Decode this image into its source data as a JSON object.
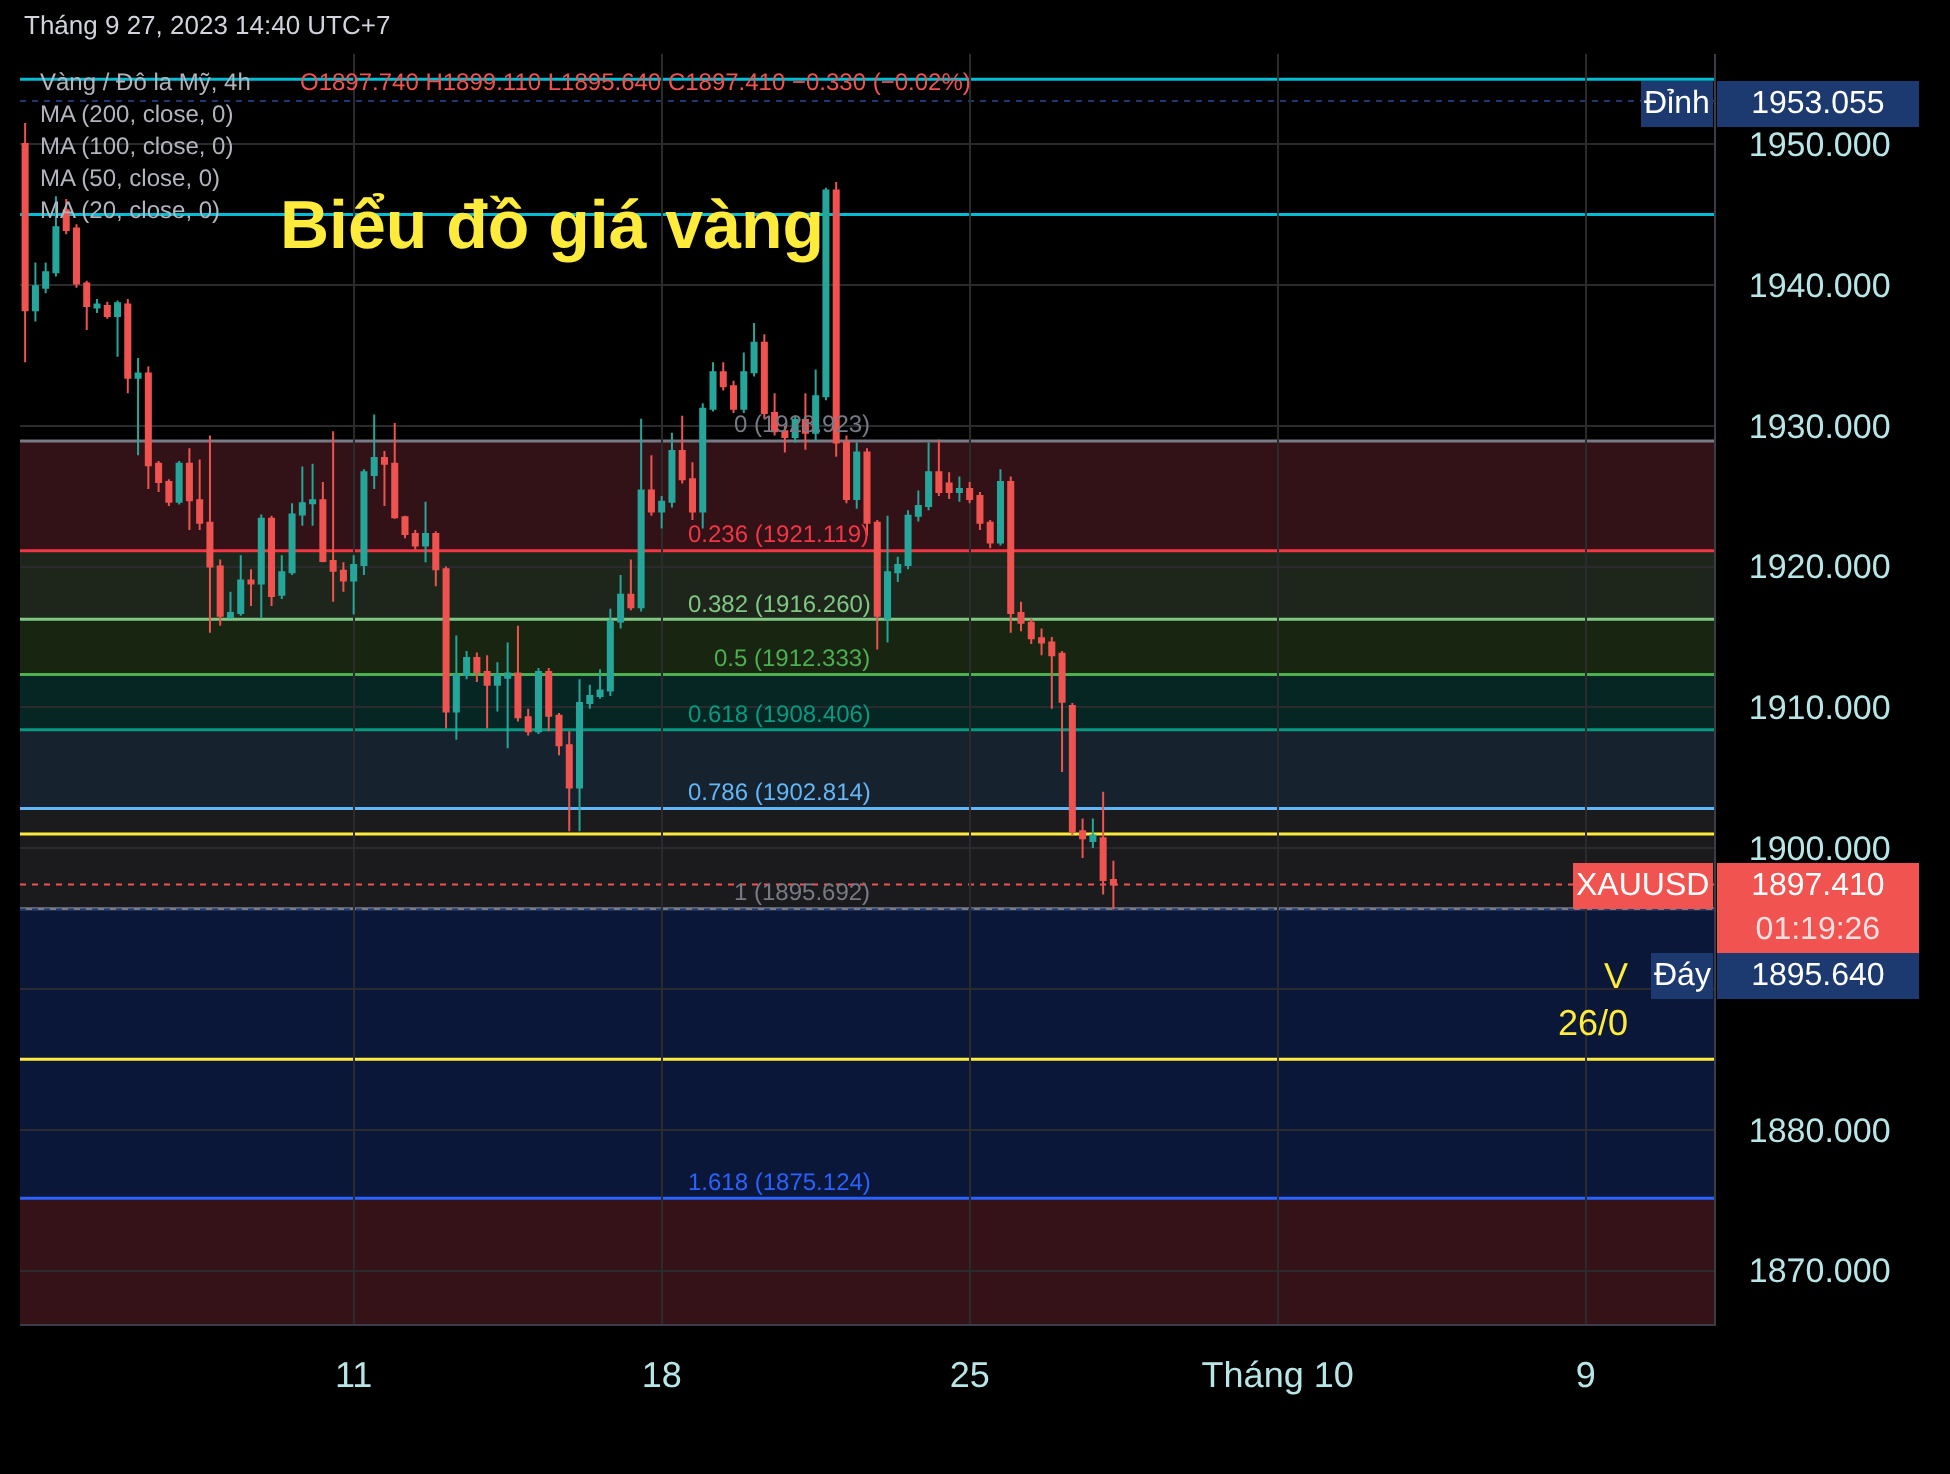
{
  "chart_data": {
    "type": "candlestick",
    "title": "Biểu đồ giá vàng",
    "categories": [
      null,
      null,
      null,
      null,
      null,
      null,
      null,
      null,
      null,
      null,
      null,
      null,
      null,
      null,
      null,
      null,
      null,
      null,
      null,
      null,
      null,
      null,
      null,
      null,
      null,
      null,
      null,
      null,
      null,
      null,
      null,
      null,
      "11",
      null,
      null,
      null,
      null,
      null,
      null,
      null,
      null,
      null,
      null,
      null,
      null,
      null,
      null,
      null,
      null,
      null,
      null,
      null,
      null,
      null,
      null,
      null,
      null,
      null,
      null,
      null,
      null,
      null,
      "18",
      null,
      null,
      null,
      null,
      null,
      null,
      null,
      null,
      null,
      null,
      null,
      null,
      null,
      null,
      null,
      null,
      null,
      null,
      null,
      null,
      null,
      null,
      null,
      null,
      null,
      null,
      null,
      null,
      null,
      "25",
      null,
      null,
      null,
      null,
      null,
      null,
      null,
      null,
      null,
      null,
      null,
      null,
      null,
      null,
      null,
      null,
      null,
      null,
      null,
      null,
      null,
      null,
      null,
      null,
      null,
      null,
      null,
      null,
      null,
      "Tháng 10",
      null,
      null,
      null,
      null,
      null,
      null,
      null,
      null,
      null,
      null,
      null,
      null,
      null,
      null,
      null,
      null,
      null,
      null,
      null,
      null,
      null,
      null,
      null,
      null,
      null,
      null,
      null,
      null,
      null,
      "9",
      null,
      null,
      null,
      null,
      null,
      null,
      null,
      null,
      null,
      null,
      null,
      null
    ],
    "ohlc": [
      [
        1950.0,
        1951.5,
        1934.5,
        1938.2
      ],
      [
        1938.2,
        1941.6,
        1937.4,
        1939.9
      ],
      [
        1939.8,
        1941.6,
        1939.4,
        1940.9
      ],
      [
        1940.9,
        1946.3,
        1940.6,
        1944.1
      ],
      [
        1945.3,
        1946.1,
        1943.6,
        1943.9
      ],
      [
        1944.0,
        1944.3,
        1939.8,
        1940.1
      ],
      [
        1940.1,
        1940.3,
        1936.8,
        1938.5
      ],
      [
        1938.4,
        1939.0,
        1938.0,
        1938.6
      ],
      [
        1938.5,
        1938.8,
        1937.6,
        1937.8
      ],
      [
        1937.8,
        1938.9,
        1934.9,
        1938.7
      ],
      [
        1938.6,
        1939.0,
        1932.3,
        1933.4
      ],
      [
        1933.4,
        1934.8,
        1927.9,
        1933.7
      ],
      [
        1933.7,
        1934.2,
        1925.5,
        1927.2
      ],
      [
        1927.3,
        1927.5,
        1925.3,
        1926.0
      ],
      [
        1926.0,
        1926.2,
        1924.3,
        1924.6
      ],
      [
        1924.6,
        1927.5,
        1924.4,
        1927.3
      ],
      [
        1927.3,
        1928.4,
        1922.6,
        1924.7
      ],
      [
        1924.7,
        1927.6,
        1922.6,
        1923.1
      ],
      [
        1923.1,
        1929.3,
        1915.3,
        1920.0
      ],
      [
        1920.0,
        1920.5,
        1915.8,
        1916.5
      ],
      [
        1916.4,
        1918.2,
        1916.3,
        1916.7
      ],
      [
        1916.7,
        1920.8,
        1916.5,
        1919.0
      ],
      [
        1919.0,
        1919.8,
        1917.2,
        1918.8
      ],
      [
        1918.8,
        1923.7,
        1916.3,
        1923.4
      ],
      [
        1923.4,
        1923.6,
        1917.2,
        1917.9
      ],
      [
        1918.0,
        1920.8,
        1917.7,
        1919.6
      ],
      [
        1919.6,
        1924.5,
        1919.4,
        1923.7
      ],
      [
        1923.7,
        1927.1,
        1922.9,
        1924.5
      ],
      [
        1924.5,
        1927.3,
        1922.9,
        1924.7
      ],
      [
        1924.7,
        1926.0,
        1920.3,
        1920.4
      ],
      [
        1920.4,
        1929.6,
        1917.5,
        1919.7
      ],
      [
        1919.7,
        1920.3,
        1918.2,
        1919.0
      ],
      [
        1919.0,
        1920.8,
        1916.6,
        1920.1
      ],
      [
        1920.1,
        1926.9,
        1919.4,
        1926.7
      ],
      [
        1926.5,
        1930.8,
        1925.5,
        1927.7
      ],
      [
        1927.7,
        1928.2,
        1924.3,
        1927.3
      ],
      [
        1927.3,
        1930.2,
        1923.4,
        1923.5
      ],
      [
        1923.5,
        1923.6,
        1922.0,
        1922.3
      ],
      [
        1922.3,
        1922.6,
        1921.2,
        1921.5
      ],
      [
        1921.5,
        1924.6,
        1920.3,
        1922.3
      ],
      [
        1922.3,
        1922.5,
        1918.6,
        1919.8
      ],
      [
        1919.8,
        1920.0,
        1908.5,
        1909.7
      ],
      [
        1909.7,
        1915.1,
        1907.7,
        1912.3
      ],
      [
        1912.3,
        1914.0,
        1912.0,
        1913.5
      ],
      [
        1913.5,
        1913.9,
        1911.8,
        1912.5
      ],
      [
        1912.5,
        1913.7,
        1908.5,
        1911.6
      ],
      [
        1911.6,
        1913.2,
        1909.7,
        1912.3
      ],
      [
        1912.1,
        1914.6,
        1907.1,
        1912.4
      ],
      [
        1912.4,
        1915.8,
        1909.0,
        1909.3
      ],
      [
        1909.3,
        1909.9,
        1908.0,
        1908.3
      ],
      [
        1908.3,
        1912.8,
        1908.1,
        1912.5
      ],
      [
        1912.5,
        1912.8,
        1908.3,
        1909.4
      ],
      [
        1909.4,
        1909.6,
        1906.6,
        1907.3
      ],
      [
        1907.3,
        1908.3,
        1901.2,
        1904.3
      ],
      [
        1904.3,
        1912.0,
        1901.2,
        1910.3
      ],
      [
        1910.3,
        1911.6,
        1909.9,
        1910.8
      ],
      [
        1910.8,
        1912.7,
        1910.6,
        1911.2
      ],
      [
        1911.2,
        1917.0,
        1910.8,
        1916.1
      ],
      [
        1916.1,
        1919.4,
        1915.6,
        1918.0
      ],
      [
        1918.0,
        1920.5,
        1916.9,
        1917.1
      ],
      [
        1917.1,
        1930.5,
        1916.8,
        1925.4
      ],
      [
        1925.4,
        1927.9,
        1923.6,
        1923.9
      ],
      [
        1923.9,
        1925.0,
        1922.7,
        1924.6
      ],
      [
        1924.6,
        1929.5,
        1924.2,
        1928.2
      ],
      [
        1928.2,
        1930.7,
        1925.9,
        1926.2
      ],
      [
        1926.2,
        1927.4,
        1923.3,
        1923.9
      ],
      [
        1923.9,
        1931.6,
        1922.7,
        1931.2
      ],
      [
        1931.2,
        1934.5,
        1931.0,
        1933.8
      ],
      [
        1933.8,
        1934.5,
        1932.5,
        1932.8
      ],
      [
        1932.8,
        1933.2,
        1930.9,
        1931.2
      ],
      [
        1931.2,
        1935.2,
        1930.9,
        1933.8
      ],
      [
        1933.8,
        1937.3,
        1933.5,
        1935.9
      ],
      [
        1935.9,
        1936.5,
        1930.5,
        1930.9
      ],
      [
        1930.9,
        1932.3,
        1929.3,
        1929.6
      ],
      [
        1929.6,
        1930.0,
        1928.1,
        1929.2
      ],
      [
        1929.2,
        1930.7,
        1928.8,
        1930.4
      ],
      [
        1930.4,
        1932.3,
        1928.3,
        1929.5
      ],
      [
        1929.5,
        1934.0,
        1928.9,
        1932.1
      ],
      [
        1932.1,
        1946.9,
        1931.8,
        1946.7
      ],
      [
        1946.7,
        1947.3,
        1927.8,
        1928.8
      ],
      [
        1928.8,
        1929.3,
        1924.5,
        1924.8
      ],
      [
        1924.8,
        1928.8,
        1924.1,
        1928.1
      ],
      [
        1928.1,
        1928.4,
        1922.2,
        1923.1
      ],
      [
        1923.1,
        1923.3,
        1914.1,
        1916.5
      ],
      [
        1916.3,
        1923.6,
        1914.6,
        1919.6
      ],
      [
        1919.6,
        1920.7,
        1918.9,
        1920.1
      ],
      [
        1920.1,
        1924.0,
        1919.8,
        1923.6
      ],
      [
        1923.6,
        1925.4,
        1923.2,
        1924.3
      ],
      [
        1924.3,
        1928.8,
        1924.0,
        1926.7
      ],
      [
        1926.7,
        1929.0,
        1925.0,
        1925.3
      ],
      [
        1925.9,
        1926.7,
        1924.8,
        1925.3
      ],
      [
        1925.3,
        1926.4,
        1924.6,
        1925.5
      ],
      [
        1925.5,
        1926.0,
        1924.5,
        1924.8
      ],
      [
        1925.0,
        1925.3,
        1922.6,
        1923.1
      ],
      [
        1923.1,
        1923.3,
        1921.3,
        1921.7
      ],
      [
        1921.7,
        1926.9,
        1921.5,
        1926.0
      ],
      [
        1926.0,
        1926.4,
        1915.3,
        1916.7
      ],
      [
        1916.7,
        1917.5,
        1915.4,
        1916.0
      ],
      [
        1916.0,
        1916.3,
        1914.5,
        1914.9
      ],
      [
        1914.9,
        1915.6,
        1913.7,
        1914.6
      ],
      [
        1914.6,
        1915.0,
        1909.9,
        1913.7
      ],
      [
        1913.8,
        1914.0,
        1905.4,
        1910.4
      ],
      [
        1910.1,
        1910.3,
        1900.9,
        1901.2
      ],
      [
        1901.2,
        1902.1,
        1899.3,
        1900.7
      ],
      [
        1900.5,
        1902.1,
        1900.0,
        1900.9
      ],
      [
        1900.7,
        1904.0,
        1896.7,
        1897.74
      ],
      [
        1897.74,
        1899.11,
        1895.64,
        1897.41
      ],
      null,
      null,
      null,
      null,
      null,
      null,
      null,
      null,
      null,
      null,
      null,
      null,
      null,
      null,
      null,
      null,
      null,
      null,
      null,
      null,
      null,
      null,
      null,
      null,
      null,
      null,
      null,
      null,
      null,
      null,
      null,
      null,
      null,
      null,
      null,
      null,
      null,
      null,
      null,
      null,
      null,
      null,
      null,
      null,
      null,
      null,
      null,
      null,
      null,
      null,
      null,
      null,
      null,
      null,
      null,
      null,
      null,
      null
    ],
    "colors": [
      "#ef5350",
      "#26a69a",
      "#26a69a",
      "#26a69a",
      "#ef5350",
      "#ef5350",
      "#ef5350",
      "#26a69a",
      "#ef5350",
      "#26a69a",
      "#ef5350",
      "#26a69a",
      "#ef5350",
      "#ef5350",
      "#ef5350",
      "#26a69a",
      "#ef5350",
      "#ef5350",
      "#ef5350",
      "#ef5350",
      "#26a69a",
      "#26a69a",
      "#ef5350",
      "#26a69a",
      "#ef5350",
      "#26a69a",
      "#26a69a",
      "#26a69a",
      "#26a69a",
      "#ef5350",
      "#ef5350",
      "#ef5350",
      "#26a69a",
      "#26a69a",
      "#26a69a",
      "#ef5350",
      "#ef5350",
      "#ef5350",
      "#ef5350",
      "#26a69a",
      "#ef5350",
      "#ef5350",
      "#26a69a",
      "#26a69a",
      "#ef5350",
      "#ef5350",
      "#26a69a",
      "#26a69a",
      "#ef5350",
      "#ef5350",
      "#26a69a",
      "#ef5350",
      "#ef5350",
      "#ef5350",
      "#26a69a",
      "#26a69a",
      "#26a69a",
      "#26a69a",
      "#26a69a",
      "#ef5350",
      "#26a69a",
      "#ef5350",
      "#26a69a",
      "#26a69a",
      "#ef5350",
      "#ef5350",
      "#26a69a",
      "#26a69a",
      "#ef5350",
      "#ef5350",
      "#26a69a",
      "#26a69a",
      "#ef5350",
      "#ef5350",
      "#ef5350",
      "#26a69a",
      "#ef5350",
      "#26a69a",
      "#26a69a",
      "#ef5350",
      "#ef5350",
      "#26a69a",
      "#ef5350",
      "#ef5350",
      "#26a69a",
      "#26a69a",
      "#26a69a",
      "#26a69a",
      "#26a69a",
      "#ef5350",
      "#ef5350",
      "#26a69a",
      "#ef5350",
      "#ef5350",
      "#ef5350",
      "#26a69a",
      "#ef5350",
      "#ef5350",
      "#ef5350",
      "#ef5350",
      "#ef5350",
      "#ef5350",
      "#ef5350",
      "#ef5350",
      "#26a69a",
      "#ef5350",
      "#ef5350",
      null,
      null,
      null,
      null,
      null,
      null,
      null,
      null,
      null,
      null,
      null,
      null,
      null,
      null,
      null,
      null,
      null,
      null,
      null,
      null,
      null,
      null,
      null,
      null,
      null,
      null,
      null,
      null,
      null,
      null,
      null,
      null,
      null,
      null,
      null,
      null,
      null,
      null,
      null,
      null,
      null,
      null,
      null,
      null,
      null,
      null,
      null,
      null,
      null,
      null,
      null,
      null,
      null,
      null,
      null,
      null,
      null,
      null
    ],
    "ylim": [
      1866.2,
      1956.4
    ],
    "yticks": [
      {
        "value": 1870,
        "label": "1870.000"
      },
      {
        "value": 1880,
        "label": "1880.000"
      },
      {
        "value": 1890,
        "label": null
      },
      {
        "value": 1900,
        "label": "1900.000"
      },
      {
        "value": 1910,
        "label": "1910.000"
      },
      {
        "value": 1920,
        "label": "1920.000"
      },
      {
        "value": 1930,
        "label": "1930.000"
      },
      {
        "value": 1940,
        "label": "1940.000"
      },
      {
        "value": 1950,
        "label": "1950.000"
      }
    ],
    "grid": true,
    "bands": [
      {
        "axis": "y",
        "from": 1928.923,
        "to": 1921.119,
        "color": "#331217"
      },
      {
        "axis": "y",
        "from": 1921.119,
        "to": 1916.26,
        "color": "#1e261c"
      },
      {
        "axis": "y",
        "from": 1916.26,
        "to": 1912.333,
        "color": "#172511"
      },
      {
        "axis": "y",
        "from": 1912.333,
        "to": 1908.406,
        "color": "#062624"
      },
      {
        "axis": "y",
        "from": 1908.406,
        "to": 1902.814,
        "color": "#16232f"
      },
      {
        "axis": "y",
        "from": 1902.814,
        "to": 1895.692,
        "color": "#1b1b1d"
      },
      {
        "axis": "y",
        "from": 1895.692,
        "to": 1875.124,
        "color": "#0b1738"
      },
      {
        "axis": "y",
        "from": 1875.124,
        "to": 1866.2,
        "color": "#341217"
      }
    ],
    "ref_lines": [
      {
        "axis": "y",
        "value": 1954.6,
        "color": "#00bcd4"
      },
      {
        "axis": "y",
        "value": 1945.0,
        "color": "#00bcd4"
      },
      {
        "axis": "y",
        "value": 1901.0,
        "color": "#ffeb3b"
      },
      {
        "axis": "y",
        "value": 1885.0,
        "color": "#ffeb3b"
      },
      {
        "axis": "y",
        "value": 1928.923,
        "label": "0 (1928.923)",
        "color": "#787b86"
      },
      {
        "axis": "y",
        "value": 1921.119,
        "label": "0.236 (1921.119)",
        "color": "#f23645"
      },
      {
        "axis": "y",
        "value": 1916.26,
        "label": "0.382 (1916.260)",
        "color": "#81c784"
      },
      {
        "axis": "y",
        "value": 1912.333,
        "label": "0.5 (1912.333)",
        "color": "#4caf50"
      },
      {
        "axis": "y",
        "value": 1908.406,
        "label": "0.618 (1908.406)",
        "color": "#089981"
      },
      {
        "axis": "y",
        "value": 1902.814,
        "label": "0.786 (1902.814)",
        "color": "#64b5f6"
      },
      {
        "axis": "y",
        "value": 1895.692,
        "label": "1 (1895.692)",
        "color": "#787b86"
      },
      {
        "axis": "y",
        "value": 1875.124,
        "label": "1.618 (1875.124)",
        "color": "#2962ff"
      },
      {
        "axis": "y",
        "value": 1953.055,
        "label": "Đỉnh",
        "color": "#1c3a70",
        "line_style": "dotted"
      },
      {
        "axis": "y",
        "value": 1897.41,
        "label": "XAUUSD",
        "color": "#f05350",
        "line_style": "dotted"
      },
      {
        "axis": "y",
        "value": 1895.64,
        "label": "Đáy",
        "color": "#1c3a70",
        "line_style": "dotted"
      }
    ],
    "annotations": [
      "Tháng 9 27, 2023 14:40 UTC+7",
      "Vàng / Đô la Mỹ, 4h",
      "O1897.740 H1899.110 L1895.640 C1897.410 −0.330 (−0.02%)",
      "MA (200, close, 0)",
      "MA (100, close, 0)",
      "MA (50, close, 0)",
      "MA (20, close, 0)",
      "1953.055",
      "1897.410",
      "01:19:26",
      "1895.640",
      "V\n26/0"
    ]
  }
}
